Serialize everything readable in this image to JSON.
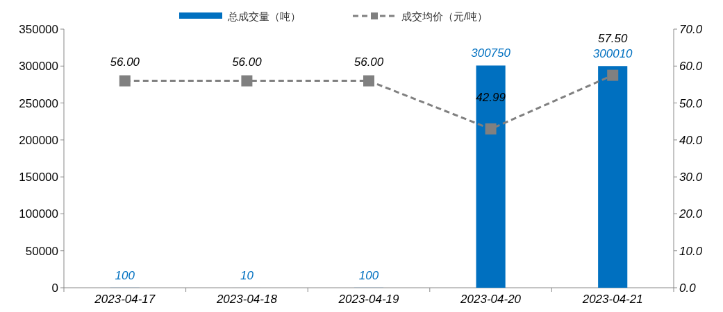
{
  "chart_data": {
    "type": "bar",
    "categories": [
      "2023-04-17",
      "2023-04-18",
      "2023-04-19",
      "2023-04-20",
      "2023-04-21"
    ],
    "series": [
      {
        "name": "总成交量（吨）",
        "color": "#0070c0",
        "values": [
          100,
          10,
          100,
          300750,
          300010
        ],
        "value_labels": [
          "100",
          "10",
          "100",
          "300750",
          "300010"
        ]
      },
      {
        "name": "成交均价（元/吨）",
        "type": "line",
        "axis": "y2",
        "color": "#808080",
        "marker": "square",
        "line_style": "dashed",
        "values": [
          56,
          56,
          56,
          42.99,
          57.5
        ],
        "value_labels": [
          "56.00",
          "56.00",
          "56.00",
          "42.99",
          "57.50"
        ]
      }
    ],
    "ylim": [
      0,
      350000
    ],
    "yticks": [
      0,
      50000,
      100000,
      150000,
      200000,
      250000,
      300000,
      350000
    ],
    "y2lim": [
      0,
      70
    ],
    "y2ticks": [
      {
        "value": 0,
        "label": "0.0"
      },
      {
        "value": 10,
        "label": "10.0"
      },
      {
        "value": 20,
        "label": "20.0"
      },
      {
        "value": 30,
        "label": "30.0"
      },
      {
        "value": 40,
        "label": "40.0"
      },
      {
        "value": 50,
        "label": "50.0"
      },
      {
        "value": 60,
        "label": "60.0"
      },
      {
        "value": 70,
        "label": "70.0"
      }
    ],
    "legend": "top"
  }
}
